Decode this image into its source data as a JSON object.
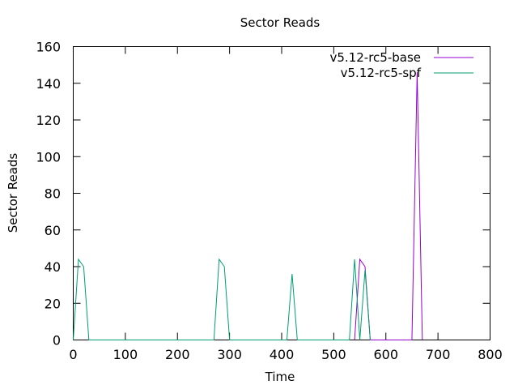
{
  "chart_data": {
    "type": "line",
    "title": "Sector Reads",
    "xlabel": "Time",
    "ylabel": "Sector Reads",
    "xlim": [
      0,
      800
    ],
    "ylim": [
      0,
      160
    ],
    "x_ticks": [
      "0",
      "100",
      "200",
      "300",
      "400",
      "500",
      "600",
      "700",
      "800"
    ],
    "y_ticks": [
      "0",
      "20",
      "40",
      "60",
      "80",
      "100",
      "120",
      "140",
      "160"
    ],
    "grid": false,
    "legend_position": "top-right",
    "series": [
      {
        "name": "v5.12-rc5-base",
        "color": "#9400d3",
        "points": [
          [
            540,
            0
          ],
          [
            550,
            44
          ],
          [
            560,
            40
          ],
          [
            570,
            0
          ],
          [
            650,
            0
          ],
          [
            660,
            146
          ],
          [
            670,
            0
          ]
        ]
      },
      {
        "name": "v5.12-rc5-spf",
        "color": "#009e73",
        "points": [
          [
            0,
            0
          ],
          [
            10,
            44
          ],
          [
            20,
            40
          ],
          [
            30,
            0
          ],
          [
            270,
            0
          ],
          [
            280,
            44
          ],
          [
            290,
            40
          ],
          [
            300,
            0
          ],
          [
            410,
            0
          ],
          [
            420,
            36
          ],
          [
            430,
            0
          ],
          [
            530,
            0
          ],
          [
            540,
            44
          ],
          [
            550,
            0
          ],
          [
            560,
            38
          ],
          [
            570,
            0
          ]
        ]
      }
    ]
  }
}
